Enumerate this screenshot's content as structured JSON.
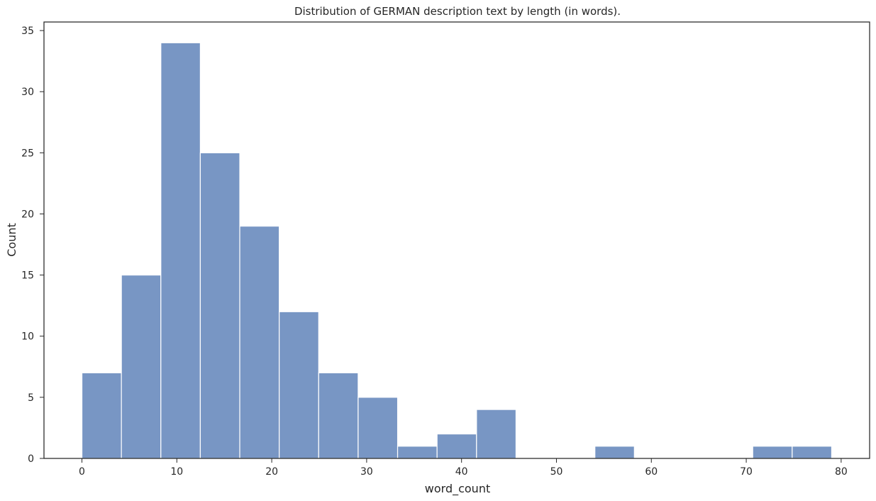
{
  "chart_data": {
    "type": "bar",
    "title": "Distribution of GERMAN description text by length (in words).",
    "xlabel": "word_count",
    "ylabel": "Count",
    "xlim": [
      -4,
      83
    ],
    "ylim": [
      0,
      35.7
    ],
    "xticks": [
      0,
      10,
      20,
      30,
      40,
      50,
      60,
      70,
      80
    ],
    "yticks": [
      0,
      5,
      10,
      15,
      20,
      25,
      30,
      35
    ],
    "grid": false,
    "bar_color": "#7896c4",
    "bins": {
      "start": 0,
      "end": 79,
      "edges": [
        0,
        4.158,
        8.316,
        12.474,
        16.632,
        20.79,
        24.947,
        29.105,
        33.263,
        37.421,
        41.579,
        45.737,
        49.895,
        54.053,
        58.211,
        62.368,
        66.526,
        70.684,
        74.842,
        79
      ],
      "counts": [
        7,
        15,
        34,
        25,
        19,
        12,
        7,
        5,
        1,
        2,
        4,
        0,
        0,
        1,
        0,
        0,
        0,
        1,
        1
      ]
    }
  }
}
